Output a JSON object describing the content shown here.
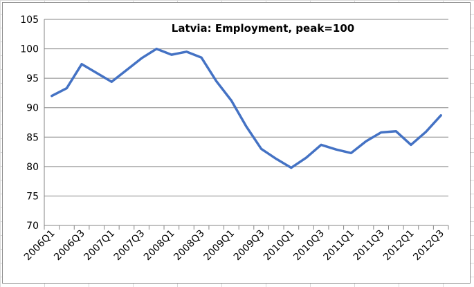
{
  "chart_data": {
    "type": "line",
    "title": "Latvia: Employment, peak=100",
    "xlabel": "",
    "ylabel": "",
    "ylim": [
      70,
      105
    ],
    "yticks": [
      70,
      75,
      80,
      85,
      90,
      95,
      100,
      105
    ],
    "grid": true,
    "legend": "none",
    "line_color": "#4472C4",
    "x": [
      "2006Q1",
      "2006Q2",
      "2006Q3",
      "2006Q4",
      "2007Q1",
      "2007Q2",
      "2007Q3",
      "2007Q4",
      "2008Q1",
      "2008Q2",
      "2008Q3",
      "2008Q4",
      "2009Q1",
      "2009Q2",
      "2009Q3",
      "2009Q4",
      "2010Q1",
      "2010Q2",
      "2010Q3",
      "2010Q4",
      "2011Q1",
      "2011Q2",
      "2011Q3",
      "2011Q4",
      "2012Q1",
      "2012Q2",
      "2012Q3"
    ],
    "xtick_labels": [
      "2006Q1",
      "2006Q3",
      "2007Q1",
      "2007Q3",
      "2008Q1",
      "2008Q3",
      "2009Q1",
      "2009Q3",
      "2010Q1",
      "2010Q3",
      "2011Q1",
      "2011Q3",
      "2012Q1",
      "2012Q3"
    ],
    "values": [
      92.0,
      93.3,
      97.4,
      95.9,
      94.4,
      96.4,
      98.4,
      100.0,
      99.0,
      99.5,
      98.5,
      94.5,
      91.2,
      86.8,
      83.0,
      81.3,
      79.8,
      81.5,
      83.7,
      82.9,
      82.3,
      84.3,
      85.8,
      86.0,
      83.7,
      85.9,
      88.7
    ]
  }
}
